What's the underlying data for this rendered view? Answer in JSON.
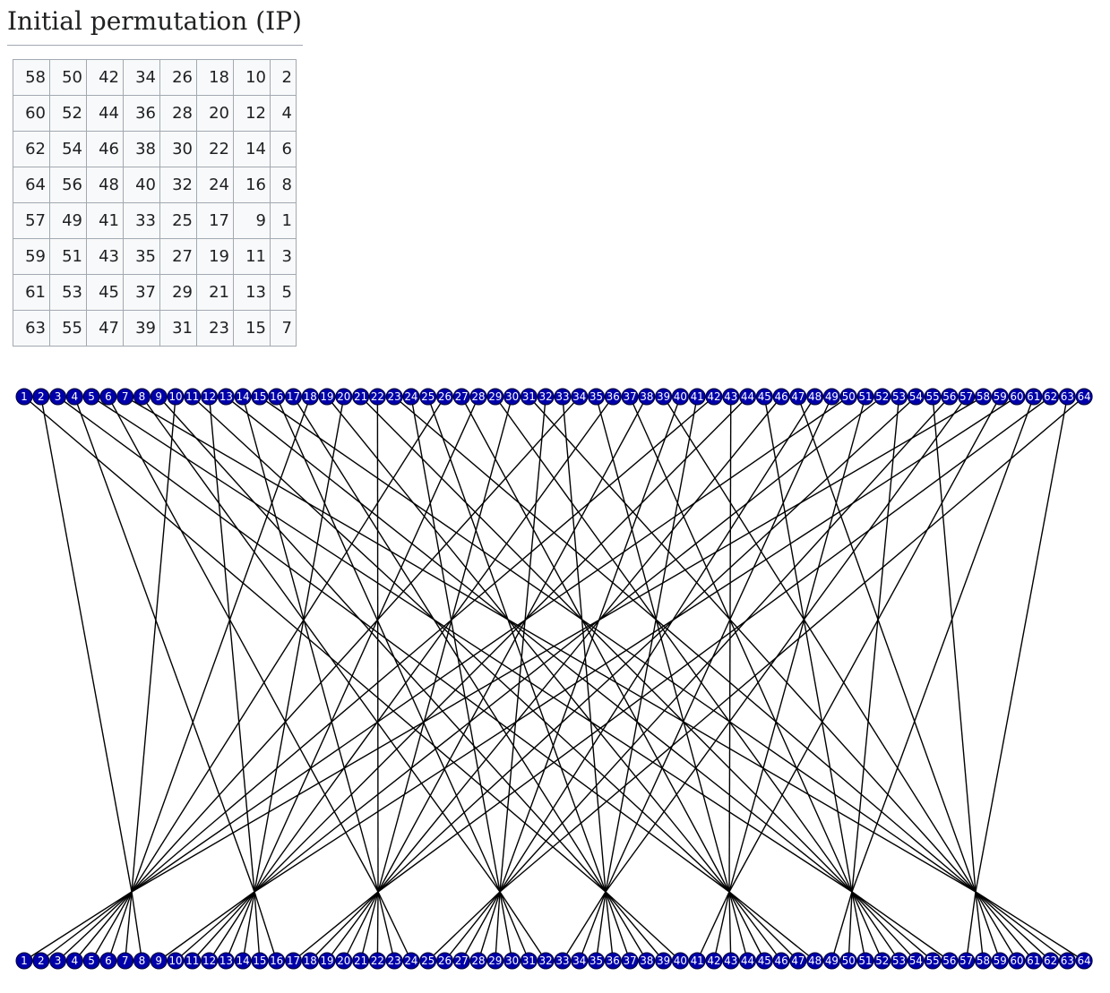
{
  "heading": "Initial permutation (IP)",
  "ip_table": [
    [
      58,
      50,
      42,
      34,
      26,
      18,
      10,
      2
    ],
    [
      60,
      52,
      44,
      36,
      28,
      20,
      12,
      4
    ],
    [
      62,
      54,
      46,
      38,
      30,
      22,
      14,
      6
    ],
    [
      64,
      56,
      48,
      40,
      32,
      24,
      16,
      8
    ],
    [
      57,
      49,
      41,
      33,
      25,
      17,
      9,
      1
    ],
    [
      59,
      51,
      43,
      35,
      27,
      19,
      11,
      3
    ],
    [
      61,
      53,
      45,
      37,
      29,
      21,
      13,
      5
    ],
    [
      63,
      55,
      47,
      39,
      31,
      23,
      15,
      7
    ]
  ],
  "diagram": {
    "input_labels": [
      "1",
      "2",
      "3",
      "4",
      "5",
      "6",
      "7",
      "8",
      "9",
      "10",
      "11",
      "12",
      "13",
      "14",
      "15",
      "16",
      "17",
      "18",
      "19",
      "20",
      "21",
      "22",
      "23",
      "24",
      "25",
      "26",
      "27",
      "28",
      "29",
      "30",
      "31",
      "32",
      "33",
      "34",
      "35",
      "36",
      "37",
      "38",
      "39",
      "40",
      "41",
      "42",
      "43",
      "44",
      "45",
      "46",
      "47",
      "48",
      "49",
      "50",
      "51",
      "52",
      "53",
      "54",
      "55",
      "56",
      "57",
      "58",
      "59",
      "60",
      "61",
      "62",
      "63",
      "64"
    ],
    "output_labels": [
      "1",
      "2",
      "3",
      "4",
      "5",
      "6",
      "7",
      "8",
      "9",
      "10",
      "11",
      "12",
      "13",
      "14",
      "15",
      "16",
      "17",
      "18",
      "19",
      "20",
      "21",
      "22",
      "23",
      "24",
      "25",
      "26",
      "27",
      "28",
      "29",
      "30",
      "31",
      "32",
      "33",
      "34",
      "35",
      "36",
      "37",
      "38",
      "39",
      "40",
      "41",
      "42",
      "43",
      "44",
      "45",
      "46",
      "47",
      "48",
      "49",
      "50",
      "51",
      "52",
      "53",
      "54",
      "55",
      "56",
      "57",
      "58",
      "59",
      "60",
      "61",
      "62",
      "63",
      "64"
    ],
    "node_color": "#0000aa",
    "line_color": "#000000"
  }
}
